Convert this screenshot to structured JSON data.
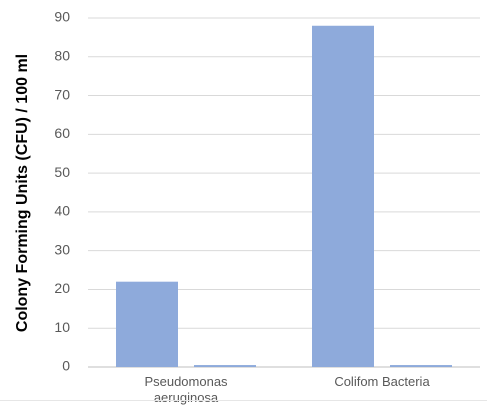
{
  "chart_data": {
    "type": "bar",
    "categories": [
      "Pseudomonas aeruginosa",
      "Colifom Bacteria"
    ],
    "category_label_lines": [
      [
        "Pseudomonas",
        "aeruginosa"
      ],
      [
        "Colifom Bacteria"
      ]
    ],
    "series": [
      {
        "values": [
          22,
          88
        ],
        "color": "#8eaadb"
      },
      {
        "values": [
          0.5,
          0.5
        ],
        "color": "#8eaadb"
      }
    ],
    "ylabel": "Colony Forming Units (CFU) / 100 ml",
    "xlabel": "",
    "ylim": [
      0,
      90
    ],
    "yticks": [
      0,
      10,
      20,
      30,
      40,
      50,
      60,
      70,
      80,
      90
    ],
    "grid": true,
    "legend": "none"
  }
}
